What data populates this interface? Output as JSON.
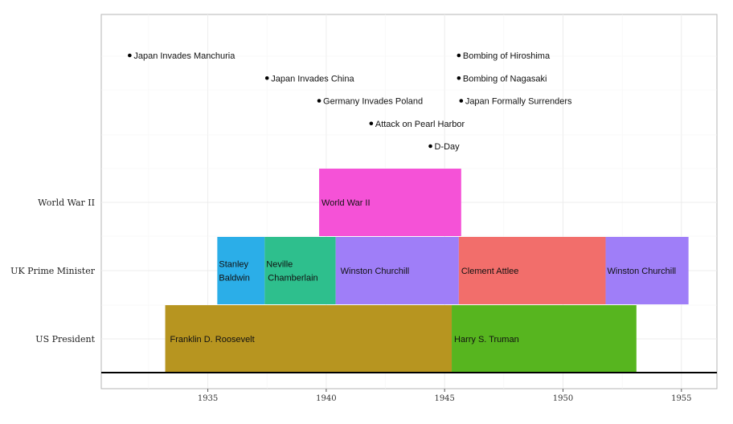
{
  "chart_data": {
    "type": "timeline",
    "title": "",
    "xlabel": "",
    "ylabel": "",
    "xlim": [
      1930.5,
      1956.5
    ],
    "x_ticks": [
      1935,
      1940,
      1945,
      1950,
      1955
    ],
    "grid": true,
    "legend": "none",
    "categories": [
      "US President",
      "UK Prime Minister",
      "World War II"
    ],
    "segments": [
      {
        "category": "US President",
        "label": "Franklin D. Roosevelt",
        "start": 1933.2,
        "end": 1945.3,
        "color": "#B79520"
      },
      {
        "category": "US President",
        "label": "Harry S. Truman",
        "start": 1945.3,
        "end": 1953.1,
        "color": "#57B51F"
      },
      {
        "category": "UK Prime Minister",
        "label": "Stanley Baldwin",
        "lines": [
          "Stanley",
          "Baldwin"
        ],
        "start": 1935.4,
        "end": 1937.4,
        "color": "#2BAEE8"
      },
      {
        "category": "UK Prime Minister",
        "label": "Neville Chamberlain",
        "lines": [
          "Neville",
          "Chamberlain"
        ],
        "start": 1937.4,
        "end": 1940.4,
        "color": "#2EBF8D"
      },
      {
        "category": "UK Prime Minister",
        "label": "Winston Churchill",
        "start": 1940.4,
        "end": 1945.6,
        "color": "#9F7EF8"
      },
      {
        "category": "UK Prime Minister",
        "label": "Clement Attlee",
        "start": 1945.6,
        "end": 1951.8,
        "color": "#F26E6B"
      },
      {
        "category": "UK Prime Minister",
        "label": "Winston Churchill",
        "start": 1951.8,
        "end": 1955.3,
        "color": "#9F7EF8"
      },
      {
        "category": "World War II",
        "label": "World War II",
        "start": 1939.7,
        "end": 1945.7,
        "color": "#F552D7"
      }
    ],
    "events": [
      {
        "label": "Japan Invades Manchuria",
        "date": 1931.7,
        "row": 1
      },
      {
        "label": "Japan Invades China",
        "date": 1937.5,
        "row": 2
      },
      {
        "label": "Germany Invades Poland",
        "date": 1939.7,
        "row": 3
      },
      {
        "label": "Attack on Pearl Harbor",
        "date": 1941.9,
        "row": 4
      },
      {
        "label": "D-Day",
        "date": 1944.4,
        "row": 5
      },
      {
        "label": "Bombing of Hiroshima",
        "date": 1945.6,
        "row": 1
      },
      {
        "label": "Bombing of Nagasaki",
        "date": 1945.6,
        "row": 2
      },
      {
        "label": "Japan Formally Surrenders",
        "date": 1945.7,
        "row": 3
      }
    ]
  }
}
